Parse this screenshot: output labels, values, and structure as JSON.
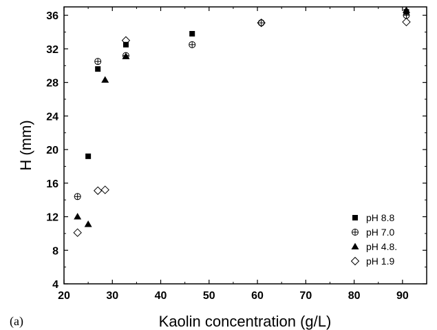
{
  "panel_label": "(a)",
  "chart_data": {
    "type": "scatter",
    "title": "",
    "xlabel": "Kaolin concentration (g/L)",
    "ylabel": "H (mm)",
    "xlim": [
      20,
      95
    ],
    "ylim": [
      4,
      37
    ],
    "xticks": [
      20,
      30,
      40,
      50,
      60,
      70,
      80,
      90
    ],
    "yticks": [
      4,
      8,
      12,
      16,
      20,
      24,
      28,
      32,
      36
    ],
    "grid": false,
    "legend_position": "bottom-right",
    "series": [
      {
        "name": "pH 8.8",
        "marker": "square-filled",
        "color": "#000000",
        "points": [
          [
            25,
            19.2
          ],
          [
            27,
            29.6
          ],
          [
            32.8,
            32.5
          ],
          [
            46.5,
            33.8
          ],
          [
            90.8,
            36.4
          ]
        ]
      },
      {
        "name": "pH 7.0",
        "marker": "circle-plus",
        "color": "#000000",
        "points": [
          [
            22.8,
            14.4
          ],
          [
            27,
            30.5
          ],
          [
            32.8,
            31.2
          ],
          [
            46.5,
            32.5
          ],
          [
            60.8,
            35.1
          ],
          [
            90.8,
            36.0
          ]
        ]
      },
      {
        "name": "pH 4.8.",
        "marker": "triangle-filled",
        "color": "#000000",
        "points": [
          [
            22.8,
            12.0
          ],
          [
            25,
            11.1
          ],
          [
            28.5,
            28.3
          ],
          [
            32.8,
            31.1
          ],
          [
            90.8,
            36.6
          ]
        ]
      },
      {
        "name": "pH 1.9",
        "marker": "diamond-open",
        "color": "#000000",
        "points": [
          [
            22.8,
            10.1
          ],
          [
            27,
            15.1
          ],
          [
            28.5,
            15.2
          ],
          [
            32.8,
            33.0
          ],
          [
            60.8,
            35.1
          ],
          [
            90.8,
            35.2
          ]
        ]
      }
    ]
  }
}
